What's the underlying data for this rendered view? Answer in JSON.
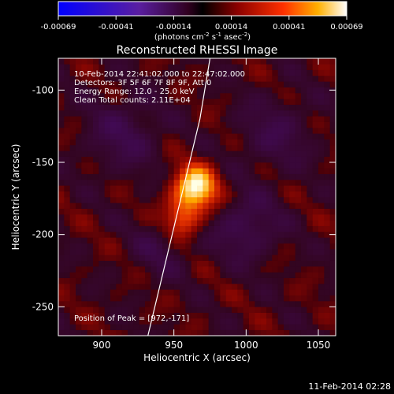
{
  "chart_data": {
    "type": "heatmap",
    "title": "Reconstructed RHESSI Image",
    "xlabel": "Heliocentric X (arcsec)",
    "ylabel": "Heliocentric Y (arcsec)",
    "xlim": [
      870,
      1062
    ],
    "ylim": [
      -270,
      -78
    ],
    "x_ticks": [
      900,
      950,
      1000,
      1050
    ],
    "y_ticks": [
      -100,
      -150,
      -200,
      -250
    ],
    "colorbar": {
      "ticks": [
        "-0.00069",
        "-0.00041",
        "-0.00014",
        "0.00014",
        "0.00041",
        "0.00069"
      ],
      "units_text": "(photons cm",
      "units_sup1": "-2",
      "units_mid": " s",
      "units_sup2": "-1",
      "units_mid2": " asec",
      "units_sup3": "-2",
      "units_end": ")",
      "range": [
        -0.00069,
        0.00069
      ]
    },
    "annotations": {
      "time_range": "10-Feb-2014 22:41:02.000 to 22:47:02.000",
      "detectors": "Detectors: 3F 5F 6F 7F 8F 9F, Att 0",
      "energy": "Energy Range: 12.0 - 25.0 keV",
      "clean": "Clean    Total counts: 2.11E+04",
      "peak": "Position of Peak = [972,-171]"
    },
    "peak_position": [
      972,
      -171
    ],
    "limb_line": [
      [
        932,
        -270
      ],
      [
        968,
        -120
      ],
      [
        975,
        -78
      ]
    ],
    "sources": [
      {
        "x": 965,
        "y": -168,
        "amp": 1.0,
        "sigma": 11
      },
      {
        "x": 955,
        "y": -190,
        "amp": 0.55,
        "sigma": 9
      },
      {
        "x": 940,
        "y": -210,
        "amp": -0.25,
        "sigma": 14
      },
      {
        "x": 915,
        "y": -130,
        "amp": -0.35,
        "sigma": 18
      },
      {
        "x": 1000,
        "y": -195,
        "amp": -0.4,
        "sigma": 16
      },
      {
        "x": 1020,
        "y": -130,
        "amp": -0.3,
        "sigma": 18
      }
    ]
  },
  "footer_date": "11-Feb-2014 02:28"
}
